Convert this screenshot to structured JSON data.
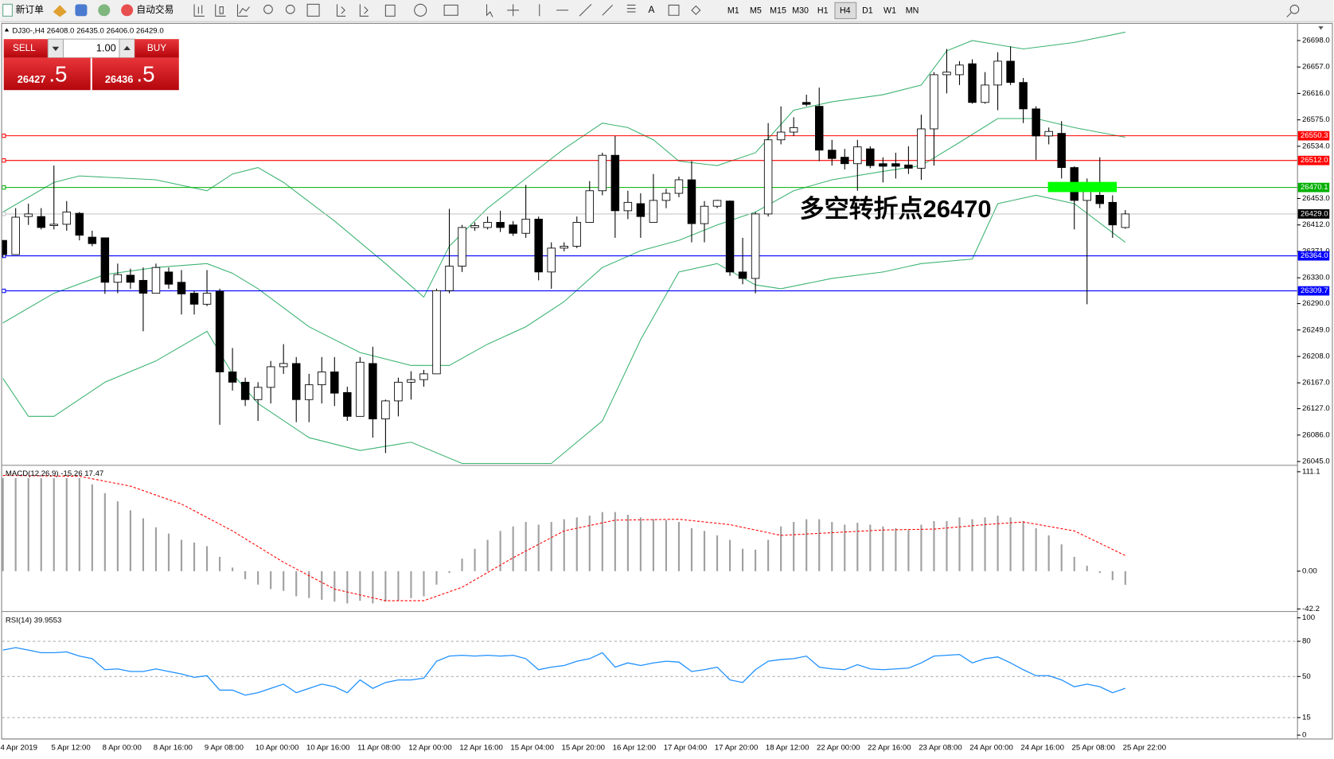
{
  "toolbar": {
    "new_order": "新订单",
    "auto_trading": "自动交易",
    "timeframes": [
      "M1",
      "M5",
      "M15",
      "M30",
      "H1",
      "H4",
      "D1",
      "W1",
      "MN"
    ],
    "active_timeframe": "H4"
  },
  "trade_panel": {
    "sell": "SELL",
    "buy": "BUY",
    "volume": "1.00",
    "sell_main": "26427",
    "sell_frac": ".5",
    "buy_main": "26436",
    "buy_frac": ".5"
  },
  "chart_data": [
    {
      "type": "candlestick",
      "panel": "price",
      "header": {
        "symbol": "DJ30-,H4",
        "open": "26408.0",
        "high": "26435.0",
        "low": "26406.0",
        "close": "26429.0"
      },
      "annotation": "多空转折点26470",
      "annotation_color": "#22c822",
      "categories": [
        "4 Apr 2019",
        null,
        null,
        null,
        "5 Apr 12:00",
        null,
        null,
        null,
        "8 Apr 00:00",
        null,
        null,
        null,
        "8 Apr 16:00",
        null,
        null,
        null,
        "9 Apr 08:00",
        null,
        null,
        null,
        "10 Apr 00:00",
        null,
        null,
        null,
        "10 Apr 16:00",
        null,
        null,
        null,
        "11 Apr 08:00",
        null,
        null,
        null,
        "12 Apr 00:00",
        null,
        null,
        null,
        "12 Apr 16:00",
        null,
        null,
        null,
        "15 Apr 04:00",
        null,
        null,
        null,
        "15 Apr 20:00",
        null,
        null,
        null,
        "16 Apr 12:00",
        null,
        null,
        null,
        "17 Apr 04:00",
        null,
        null,
        null,
        "17 Apr 20:00",
        null,
        null,
        null,
        "18 Apr 12:00",
        null,
        null,
        null,
        "22 Apr 00:00",
        null,
        null,
        null,
        "22 Apr 16:00",
        null,
        null,
        null,
        "23 Apr 08:00",
        null,
        null,
        null,
        "24 Apr 00:00",
        null,
        null,
        null,
        "24 Apr 16:00",
        null,
        null,
        null,
        "25 Apr 08:00",
        null,
        null,
        null,
        "25 Apr 22:00"
      ],
      "ohlc": [
        [
          26388,
          26388,
          26362,
          26366
        ],
        [
          26366,
          26438,
          26366,
          26424
        ],
        [
          26425,
          26445,
          26412,
          26429
        ],
        [
          26425,
          26438,
          26405,
          26408
        ],
        [
          26411,
          26504,
          26405,
          26413
        ],
        [
          26413,
          26449,
          26403,
          26432
        ],
        [
          26430,
          26432,
          26388,
          26396
        ],
        [
          26393,
          26403,
          26379,
          26383
        ],
        [
          26392,
          26392,
          26305,
          26323
        ],
        [
          26323,
          26352,
          26306,
          26335
        ],
        [
          26334,
          26344,
          26313,
          26323
        ],
        [
          26326,
          26346,
          26247,
          26306
        ],
        [
          26306,
          26352,
          26306,
          26346
        ],
        [
          26339,
          26346,
          26313,
          26320
        ],
        [
          26323,
          26342,
          26273,
          26305
        ],
        [
          26306,
          26310,
          26273,
          26289
        ],
        [
          26289,
          26342,
          26286,
          26306
        ],
        [
          26309,
          26313,
          26102,
          26184
        ],
        [
          26184,
          26221,
          26155,
          26168
        ],
        [
          26168,
          26175,
          26131,
          26141
        ],
        [
          26141,
          26168,
          26108,
          26160
        ],
        [
          26160,
          26201,
          26135,
          26192
        ],
        [
          26192,
          26227,
          26181,
          26197
        ],
        [
          26197,
          26207,
          26106,
          26141
        ],
        [
          26141,
          26181,
          26106,
          26164
        ],
        [
          26164,
          26207,
          26135,
          26184
        ],
        [
          26184,
          26207,
          26131,
          26151
        ],
        [
          26152,
          26161,
          26108,
          26115
        ],
        [
          26115,
          26207,
          26115,
          26199
        ],
        [
          26197,
          26223,
          26082,
          26111
        ],
        [
          26111,
          26141,
          26058,
          26139
        ],
        [
          26139,
          26175,
          26115,
          26168
        ],
        [
          26168,
          26185,
          26141,
          26172
        ],
        [
          26172,
          26187,
          26161,
          26181
        ],
        [
          26181,
          26313,
          26181,
          26310
        ],
        [
          26310,
          26437,
          26306,
          26348
        ],
        [
          26348,
          26412,
          26339,
          26408
        ],
        [
          26408,
          26416,
          26403,
          26411
        ],
        [
          26408,
          26425,
          26405,
          26416
        ],
        [
          26416,
          26434,
          26401,
          26408
        ],
        [
          26412,
          26418,
          26395,
          26399
        ],
        [
          26399,
          26474,
          26392,
          26421
        ],
        [
          26421,
          26425,
          26326,
          26339
        ],
        [
          26339,
          26385,
          26313,
          26376
        ],
        [
          26376,
          26385,
          26371,
          26379
        ],
        [
          26379,
          26425,
          26376,
          26416
        ],
        [
          26416,
          26480,
          26416,
          26465
        ],
        [
          26465,
          26524,
          26458,
          26520
        ],
        [
          26520,
          26550,
          26392,
          26434
        ],
        [
          26434,
          26465,
          26421,
          26447
        ],
        [
          26445,
          26461,
          26392,
          26425
        ],
        [
          26416,
          26491,
          26416,
          26450
        ],
        [
          26450,
          26468,
          26438,
          26461
        ],
        [
          26461,
          26487,
          26455,
          26482
        ],
        [
          26482,
          26511,
          26385,
          26414
        ],
        [
          26414,
          26449,
          26385,
          26441
        ],
        [
          26441,
          26451,
          26438,
          26450
        ],
        [
          26449,
          26450,
          26333,
          26339
        ],
        [
          26339,
          26392,
          26320,
          26329
        ],
        [
          26329,
          26432,
          26306,
          26429
        ],
        [
          26429,
          26570,
          26425,
          26544
        ],
        [
          26544,
          26596,
          26537,
          26556
        ],
        [
          26556,
          26579,
          26550,
          26563
        ],
        [
          26602,
          26614,
          26596,
          26599
        ],
        [
          26596,
          26625,
          26511,
          26528
        ],
        [
          26528,
          26544,
          26504,
          26515
        ],
        [
          26517,
          26530,
          26498,
          26507
        ],
        [
          26507,
          26544,
          26465,
          26533
        ],
        [
          26530,
          26534,
          26500,
          26504
        ],
        [
          26507,
          26517,
          26478,
          26503
        ],
        [
          26507,
          26524,
          26484,
          26503
        ],
        [
          26505,
          26534,
          26491,
          26500
        ],
        [
          26500,
          26583,
          26482,
          26561
        ],
        [
          26561,
          26649,
          26504,
          26645
        ],
        [
          26645,
          26685,
          26616,
          26649
        ],
        [
          26645,
          26666,
          26629,
          26660
        ],
        [
          26662,
          26669,
          26600,
          26602
        ],
        [
          26602,
          26649,
          26600,
          26629
        ],
        [
          26629,
          26680,
          26590,
          26666
        ],
        [
          26666,
          26689,
          26629,
          26633
        ],
        [
          26633,
          26640,
          26570,
          26592
        ],
        [
          26592,
          26596,
          26513,
          26550
        ],
        [
          26550,
          26563,
          26537,
          26557
        ],
        [
          26554,
          26573,
          26484,
          26501
        ],
        [
          26501,
          26503,
          26405,
          26450
        ],
        [
          26450,
          26484,
          26289,
          26467
        ],
        [
          26458,
          26517,
          26438,
          26445
        ],
        [
          26447,
          26458,
          26392,
          26412
        ],
        [
          26408,
          26435,
          26406,
          26429
        ]
      ],
      "bands": [
        {
          "color": "#3cb371",
          "x": [
            0,
            4,
            6,
            12,
            16,
            18,
            20,
            22,
            26,
            30,
            33,
            35,
            38,
            41,
            44,
            47,
            49,
            51,
            53,
            56,
            59,
            62,
            65,
            69,
            72,
            74,
            76,
            80,
            84,
            88
          ],
          "values": [
            26432,
            26478,
            26488,
            26482,
            26465,
            26491,
            26501,
            26478,
            26418,
            26352,
            26300,
            26379,
            26438,
            26484,
            26530,
            26570,
            26563,
            26544,
            26511,
            26504,
            26524,
            26590,
            26603,
            26614,
            26629,
            26682,
            26698,
            26685,
            26695,
            26711
          ]
        },
        {
          "color": "#3cb371",
          "x": [
            0,
            4,
            8,
            12,
            16,
            18,
            20,
            24,
            28,
            32,
            35,
            38,
            41,
            44,
            47,
            50,
            53,
            56,
            59,
            62,
            65,
            69,
            72,
            75,
            78,
            81,
            84,
            88
          ],
          "values": [
            26260,
            26306,
            26335,
            26346,
            26352,
            26337,
            26313,
            26254,
            26214,
            26194,
            26194,
            26227,
            26254,
            26293,
            26346,
            26372,
            26388,
            26412,
            26432,
            26465,
            26482,
            26495,
            26504,
            26540,
            26577,
            26577,
            26563,
            26548
          ]
        },
        {
          "color": "#3cb371",
          "x": [
            0,
            2,
            4,
            8,
            12,
            16,
            18,
            20,
            24,
            28,
            32,
            36,
            43,
            47,
            50,
            53,
            56,
            59,
            61,
            65,
            69,
            72,
            76,
            78,
            81,
            84,
            88
          ],
          "values": [
            26174,
            26115,
            26115,
            26168,
            26201,
            26247,
            26181,
            26135,
            26082,
            26062,
            26075,
            26042,
            26042,
            26108,
            26234,
            26339,
            26352,
            26319,
            26313,
            26329,
            26339,
            26352,
            26359,
            26445,
            26458,
            26445,
            26385
          ]
        }
      ],
      "levels": [
        {
          "value": 26550.3,
          "label": "26550.3",
          "color": "#ff0000",
          "box": "#ff0000"
        },
        {
          "value": 26512.0,
          "label": "26512.0",
          "color": "#ff0000",
          "box": "#ff0000"
        },
        {
          "value": 26470.1,
          "label": "26470.1",
          "color": "#00b000",
          "box": "#00b000"
        },
        {
          "value": 26429.0,
          "label": "26429.0",
          "color": "#c8c8c8",
          "box": "#000000"
        },
        {
          "value": 26364.0,
          "label": "26364.0",
          "color": "#0000ff",
          "box": "#0000ff"
        },
        {
          "value": 26309.7,
          "label": "26309.7",
          "color": "#0000ff",
          "box": "#0000ff"
        }
      ],
      "ylim": [
        26041,
        26724
      ],
      "yticks": [
        {
          "value": 26698,
          "label": "26698.0"
        },
        {
          "value": 26657,
          "label": "26657.0"
        },
        {
          "value": 26616,
          "label": "26616.0"
        },
        {
          "value": 26575,
          "label": "26575.0"
        },
        {
          "value": 26534,
          "label": "26534.0"
        },
        {
          "value": 26453,
          "label": "26453.0"
        },
        {
          "value": 26412,
          "label": "26412.0"
        },
        {
          "value": 26371,
          "label": "26371.0"
        },
        {
          "value": 26330,
          "label": "26330.0"
        },
        {
          "value": 26290,
          "label": "26290.0"
        },
        {
          "value": 26249,
          "label": "26249.0"
        },
        {
          "value": 26208,
          "label": "26208.0"
        },
        {
          "value": 26167,
          "label": "26167.0"
        },
        {
          "value": 26127,
          "label": "26127.0"
        },
        {
          "value": 26086,
          "label": "26086.0"
        },
        {
          "value": 26045,
          "label": "26045.0"
        }
      ]
    },
    {
      "type": "macd",
      "panel": "macd",
      "title": "MACD(12,26,9)",
      "title_values": "-15.26 17.47",
      "values": [
        104,
        104,
        104,
        104,
        104,
        104,
        104,
        97,
        87,
        78,
        68,
        59,
        49,
        42,
        35,
        32,
        28,
        16,
        4,
        -9,
        -15,
        -20,
        -22,
        -28,
        -30,
        -32,
        -34,
        -36,
        -33,
        -36,
        -34,
        -33,
        -30,
        -28,
        -15,
        -2,
        14,
        25,
        35,
        45,
        50,
        55,
        52,
        55,
        58,
        60,
        62,
        66,
        66,
        63,
        60,
        58,
        57,
        55,
        48,
        45,
        40,
        35,
        25,
        24,
        35,
        50,
        55,
        58,
        58,
        55,
        52,
        54,
        52,
        50,
        48,
        46,
        52,
        56,
        56,
        60,
        58,
        60,
        62,
        60,
        56,
        48,
        40,
        30,
        16,
        6,
        -2,
        -10,
        -15.26
      ],
      "color": "#a0a0a0",
      "signal": {
        "color": "#ff0000",
        "x": [
          0,
          6,
          10,
          14,
          18,
          22,
          26,
          30,
          33,
          36,
          40,
          44,
          48,
          53,
          57,
          61,
          65,
          69,
          73,
          77,
          80,
          84,
          88
        ],
        "values": [
          107,
          106,
          95,
          75,
          45,
          10,
          -20,
          -33,
          -33,
          -18,
          15,
          45,
          57,
          58,
          52,
          40,
          43,
          46,
          47,
          52,
          55,
          45,
          17.47
        ]
      },
      "ylim": [
        -42.7,
        116.8
      ],
      "yticks": [
        111.1,
        {
          "value": 0,
          "label": "0.00"
        },
        -42.2
      ]
    },
    {
      "type": "line",
      "panel": "rsi",
      "title": "RSI(14) 39.9553",
      "color": "#1e90ff",
      "values": [
        72.5,
        74.6,
        72.5,
        70.3,
        70.3,
        71.0,
        67.4,
        65.2,
        55.8,
        56.5,
        54.3,
        54.3,
        56.5,
        54.3,
        52.2,
        49.3,
        50.7,
        38.4,
        38.4,
        34.1,
        36.2,
        39.9,
        43.5,
        36.2,
        39.9,
        43.5,
        41.3,
        36.2,
        47.1,
        39.9,
        44.9,
        47.1,
        47.1,
        48.6,
        63.0,
        67.4,
        68.1,
        67.4,
        68.1,
        67.4,
        68.1,
        65.2,
        55.8,
        58.0,
        59.4,
        63.0,
        65.2,
        70.3,
        58.0,
        61.6,
        59.4,
        61.6,
        63.0,
        62.3,
        54.3,
        55.8,
        58.0,
        47.1,
        44.9,
        55.8,
        63.0,
        64.5,
        65.2,
        67.4,
        58.0,
        56.5,
        55.8,
        60.1,
        56.5,
        55.8,
        56.5,
        57.2,
        61.6,
        67.4,
        68.1,
        68.8,
        61.6,
        65.2,
        66.7,
        61.6,
        55.8,
        50.7,
        50.7,
        47.1,
        41.3,
        43.5,
        41.3,
        36.2,
        39.9553
      ],
      "levels": [
        80,
        50,
        15
      ],
      "ylim": [
        -2.2,
        104.3
      ],
      "yticks": [
        100,
        80,
        50,
        15,
        0
      ]
    }
  ]
}
